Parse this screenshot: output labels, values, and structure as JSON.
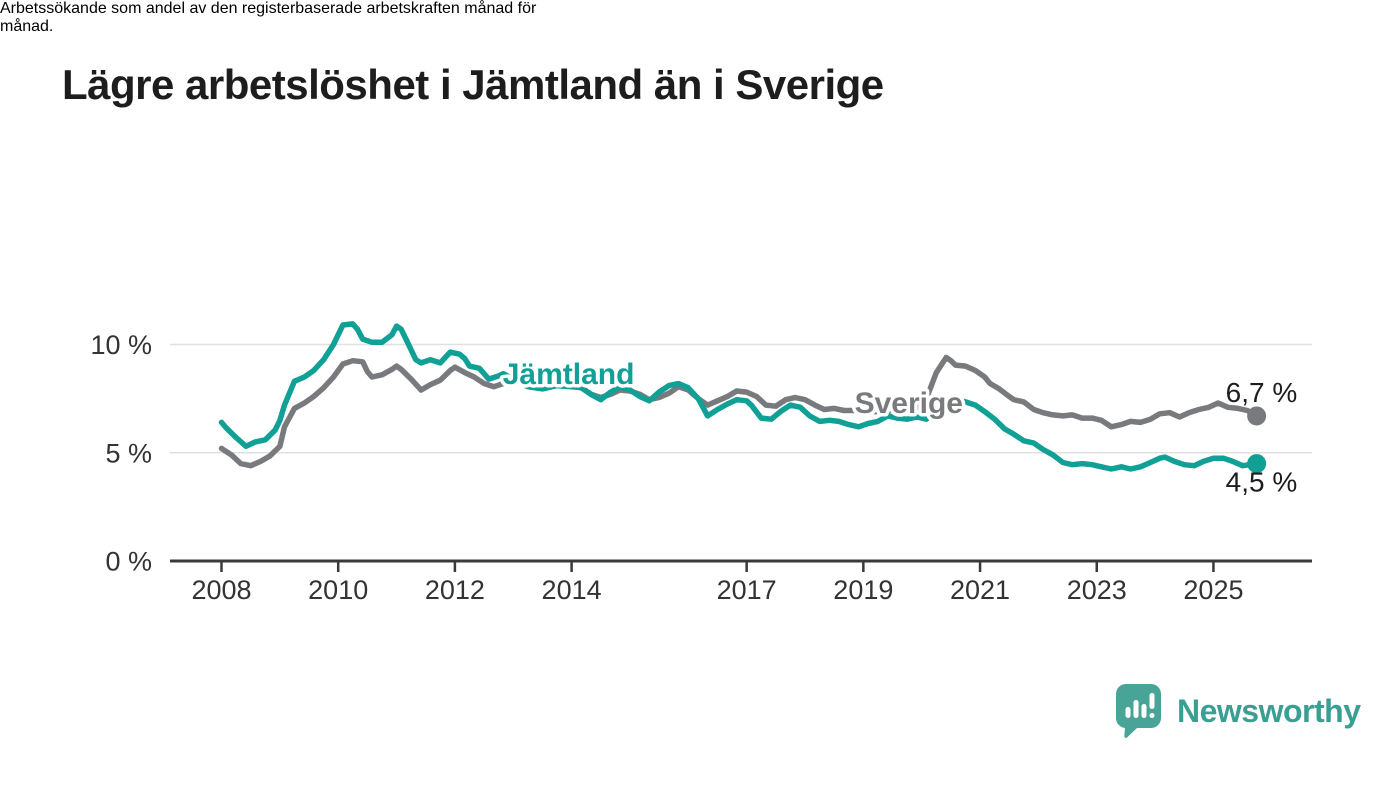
{
  "header": {
    "title": "Lägre arbetslöshet i Jämtland än i Sverige",
    "subtitle": {
      "line1": "Arbetssökande som andel av den registerbaserade arbetskraften månad för",
      "line2": "månad."
    }
  },
  "chart_data": {
    "type": "line",
    "unit": "%",
    "grid": "horizontal",
    "legend_position": "inline-labels",
    "x_range": [
      2007.1,
      2026.7
    ],
    "ylim": [
      0,
      11.5
    ],
    "x_ticks": [
      2008,
      2010,
      2012,
      2014,
      2017,
      2019,
      2021,
      2023,
      2025
    ],
    "y_ticks": [
      {
        "value": 0,
        "label": "0 %"
      },
      {
        "value": 5,
        "label": "5 %"
      },
      {
        "value": 10,
        "label": "10 %"
      }
    ],
    "colors": {
      "jamtland": "#10a096",
      "sverige": "#787a7d",
      "axis": "#3a3a3a",
      "gridline": "#e0e0e0",
      "end_label_text": "#1d1d1d"
    },
    "series": [
      {
        "name": "Jämtland",
        "color": "#10a096",
        "label": {
          "text": "Jämtland",
          "x": 2012.82,
          "y": 8.18
        },
        "end_label": "4,5 %",
        "end_label_offset": {
          "dx": -31,
          "dy": 28
        },
        "points": [
          [
            2008.0,
            6.4
          ],
          [
            2008.08,
            6.15
          ],
          [
            2008.25,
            5.7
          ],
          [
            2008.42,
            5.3
          ],
          [
            2008.58,
            5.5
          ],
          [
            2008.75,
            5.6
          ],
          [
            2008.92,
            6.05
          ],
          [
            2009.0,
            6.5
          ],
          [
            2009.08,
            7.2
          ],
          [
            2009.25,
            8.3
          ],
          [
            2009.42,
            8.5
          ],
          [
            2009.58,
            8.8
          ],
          [
            2009.75,
            9.3
          ],
          [
            2009.92,
            10.0
          ],
          [
            2010.08,
            10.9
          ],
          [
            2010.25,
            10.95
          ],
          [
            2010.33,
            10.7
          ],
          [
            2010.42,
            10.25
          ],
          [
            2010.58,
            10.1
          ],
          [
            2010.75,
            10.1
          ],
          [
            2010.92,
            10.45
          ],
          [
            2011.0,
            10.85
          ],
          [
            2011.08,
            10.7
          ],
          [
            2011.17,
            10.2
          ],
          [
            2011.33,
            9.3
          ],
          [
            2011.42,
            9.15
          ],
          [
            2011.58,
            9.3
          ],
          [
            2011.75,
            9.15
          ],
          [
            2011.92,
            9.65
          ],
          [
            2012.08,
            9.55
          ],
          [
            2012.17,
            9.35
          ],
          [
            2012.25,
            9.0
          ],
          [
            2012.42,
            8.9
          ],
          [
            2012.58,
            8.4
          ],
          [
            2012.75,
            8.55
          ],
          [
            2012.83,
            8.65
          ],
          [
            2013.0,
            8.4
          ],
          [
            2013.25,
            8.05
          ],
          [
            2013.5,
            7.95
          ],
          [
            2013.75,
            8.1
          ],
          [
            2014.0,
            8.05
          ],
          [
            2014.17,
            8.0
          ],
          [
            2014.33,
            7.7
          ],
          [
            2014.5,
            7.45
          ],
          [
            2014.67,
            7.8
          ],
          [
            2014.83,
            8.05
          ],
          [
            2015.0,
            7.9
          ],
          [
            2015.17,
            7.6
          ],
          [
            2015.33,
            7.4
          ],
          [
            2015.5,
            7.8
          ],
          [
            2015.67,
            8.1
          ],
          [
            2015.83,
            8.2
          ],
          [
            2016.0,
            8.0
          ],
          [
            2016.17,
            7.5
          ],
          [
            2016.33,
            6.7
          ],
          [
            2016.5,
            7.0
          ],
          [
            2016.67,
            7.25
          ],
          [
            2016.83,
            7.45
          ],
          [
            2017.0,
            7.4
          ],
          [
            2017.08,
            7.2
          ],
          [
            2017.25,
            6.6
          ],
          [
            2017.42,
            6.55
          ],
          [
            2017.58,
            6.9
          ],
          [
            2017.75,
            7.2
          ],
          [
            2017.92,
            7.1
          ],
          [
            2018.08,
            6.7
          ],
          [
            2018.25,
            6.45
          ],
          [
            2018.42,
            6.5
          ],
          [
            2018.58,
            6.45
          ],
          [
            2018.75,
            6.3
          ],
          [
            2018.92,
            6.2
          ],
          [
            2019.08,
            6.35
          ],
          [
            2019.25,
            6.45
          ],
          [
            2019.42,
            6.7
          ],
          [
            2019.58,
            6.6
          ],
          [
            2019.75,
            6.55
          ],
          [
            2019.92,
            6.65
          ],
          [
            2020.08,
            6.55
          ],
          [
            2020.25,
            7.0
          ],
          [
            2020.42,
            7.45
          ],
          [
            2020.58,
            7.5
          ],
          [
            2020.75,
            7.35
          ],
          [
            2020.92,
            7.2
          ],
          [
            2021.08,
            6.9
          ],
          [
            2021.25,
            6.55
          ],
          [
            2021.42,
            6.1
          ],
          [
            2021.58,
            5.85
          ],
          [
            2021.75,
            5.55
          ],
          [
            2021.92,
            5.45
          ],
          [
            2022.08,
            5.15
          ],
          [
            2022.25,
            4.9
          ],
          [
            2022.42,
            4.55
          ],
          [
            2022.58,
            4.45
          ],
          [
            2022.75,
            4.5
          ],
          [
            2022.92,
            4.45
          ],
          [
            2023.08,
            4.35
          ],
          [
            2023.25,
            4.25
          ],
          [
            2023.42,
            4.35
          ],
          [
            2023.58,
            4.25
          ],
          [
            2023.75,
            4.35
          ],
          [
            2023.92,
            4.55
          ],
          [
            2024.08,
            4.75
          ],
          [
            2024.17,
            4.8
          ],
          [
            2024.33,
            4.6
          ],
          [
            2024.5,
            4.45
          ],
          [
            2024.67,
            4.4
          ],
          [
            2024.83,
            4.6
          ],
          [
            2025.0,
            4.75
          ],
          [
            2025.17,
            4.75
          ],
          [
            2025.33,
            4.6
          ],
          [
            2025.5,
            4.4
          ],
          [
            2025.62,
            4.45
          ],
          [
            2025.74,
            4.5
          ]
        ]
      },
      {
        "name": "Sverige",
        "color": "#787a7d",
        "label": {
          "text": "Sverige",
          "x": 2018.85,
          "y": 6.83
        },
        "end_label": "6,7 %",
        "end_label_offset": {
          "dx": -31,
          "dy": -14
        },
        "points": [
          [
            2008.0,
            5.2
          ],
          [
            2008.17,
            4.9
          ],
          [
            2008.33,
            4.5
          ],
          [
            2008.5,
            4.4
          ],
          [
            2008.67,
            4.6
          ],
          [
            2008.83,
            4.85
          ],
          [
            2009.0,
            5.3
          ],
          [
            2009.08,
            6.2
          ],
          [
            2009.25,
            7.05
          ],
          [
            2009.42,
            7.3
          ],
          [
            2009.58,
            7.6
          ],
          [
            2009.75,
            8.0
          ],
          [
            2009.92,
            8.5
          ],
          [
            2010.08,
            9.1
          ],
          [
            2010.25,
            9.25
          ],
          [
            2010.42,
            9.2
          ],
          [
            2010.5,
            8.75
          ],
          [
            2010.58,
            8.5
          ],
          [
            2010.75,
            8.6
          ],
          [
            2010.92,
            8.85
          ],
          [
            2011.0,
            9.0
          ],
          [
            2011.08,
            8.85
          ],
          [
            2011.25,
            8.4
          ],
          [
            2011.42,
            7.9
          ],
          [
            2011.58,
            8.15
          ],
          [
            2011.75,
            8.35
          ],
          [
            2011.92,
            8.8
          ],
          [
            2012.0,
            8.95
          ],
          [
            2012.17,
            8.7
          ],
          [
            2012.33,
            8.5
          ],
          [
            2012.5,
            8.2
          ],
          [
            2012.67,
            8.05
          ],
          [
            2012.83,
            8.2
          ],
          [
            2013.0,
            8.3
          ],
          [
            2013.25,
            8.4
          ],
          [
            2013.5,
            8.35
          ],
          [
            2013.75,
            8.25
          ],
          [
            2014.0,
            8.1
          ],
          [
            2014.17,
            8.0
          ],
          [
            2014.33,
            7.7
          ],
          [
            2014.5,
            7.55
          ],
          [
            2014.67,
            7.7
          ],
          [
            2014.83,
            7.9
          ],
          [
            2015.0,
            7.85
          ],
          [
            2015.17,
            7.7
          ],
          [
            2015.33,
            7.45
          ],
          [
            2015.5,
            7.55
          ],
          [
            2015.67,
            7.75
          ],
          [
            2015.83,
            8.05
          ],
          [
            2016.0,
            7.9
          ],
          [
            2016.17,
            7.5
          ],
          [
            2016.33,
            7.2
          ],
          [
            2016.5,
            7.4
          ],
          [
            2016.67,
            7.6
          ],
          [
            2016.83,
            7.85
          ],
          [
            2017.0,
            7.8
          ],
          [
            2017.17,
            7.6
          ],
          [
            2017.33,
            7.2
          ],
          [
            2017.5,
            7.15
          ],
          [
            2017.67,
            7.45
          ],
          [
            2017.83,
            7.55
          ],
          [
            2018.0,
            7.45
          ],
          [
            2018.17,
            7.2
          ],
          [
            2018.33,
            7.0
          ],
          [
            2018.5,
            7.05
          ],
          [
            2018.67,
            6.95
          ],
          [
            2018.83,
            6.95
          ],
          [
            2019.0,
            6.9
          ],
          [
            2019.25,
            6.9
          ],
          [
            2019.5,
            6.95
          ],
          [
            2019.75,
            7.0
          ],
          [
            2019.92,
            7.1
          ],
          [
            2020.08,
            7.5
          ],
          [
            2020.25,
            8.7
          ],
          [
            2020.42,
            9.4
          ],
          [
            2020.5,
            9.25
          ],
          [
            2020.58,
            9.05
          ],
          [
            2020.75,
            9.0
          ],
          [
            2020.92,
            8.8
          ],
          [
            2021.08,
            8.5
          ],
          [
            2021.17,
            8.2
          ],
          [
            2021.33,
            7.95
          ],
          [
            2021.5,
            7.6
          ],
          [
            2021.58,
            7.45
          ],
          [
            2021.75,
            7.35
          ],
          [
            2021.92,
            7.0
          ],
          [
            2022.08,
            6.85
          ],
          [
            2022.25,
            6.75
          ],
          [
            2022.42,
            6.7
          ],
          [
            2022.58,
            6.75
          ],
          [
            2022.75,
            6.6
          ],
          [
            2022.92,
            6.6
          ],
          [
            2023.08,
            6.5
          ],
          [
            2023.25,
            6.2
          ],
          [
            2023.42,
            6.3
          ],
          [
            2023.58,
            6.45
          ],
          [
            2023.75,
            6.4
          ],
          [
            2023.92,
            6.55
          ],
          [
            2024.08,
            6.8
          ],
          [
            2024.25,
            6.85
          ],
          [
            2024.42,
            6.65
          ],
          [
            2024.58,
            6.85
          ],
          [
            2024.75,
            7.0
          ],
          [
            2024.92,
            7.1
          ],
          [
            2025.08,
            7.3
          ],
          [
            2025.25,
            7.1
          ],
          [
            2025.42,
            7.05
          ],
          [
            2025.58,
            6.95
          ],
          [
            2025.74,
            6.7
          ]
        ]
      }
    ]
  },
  "footer": {
    "brand": "Newsworthy",
    "logo_icon": "speech-bubble-bar-chart-icon",
    "brand_color": "#3a9f93",
    "logo_fill": "#48a496"
  }
}
